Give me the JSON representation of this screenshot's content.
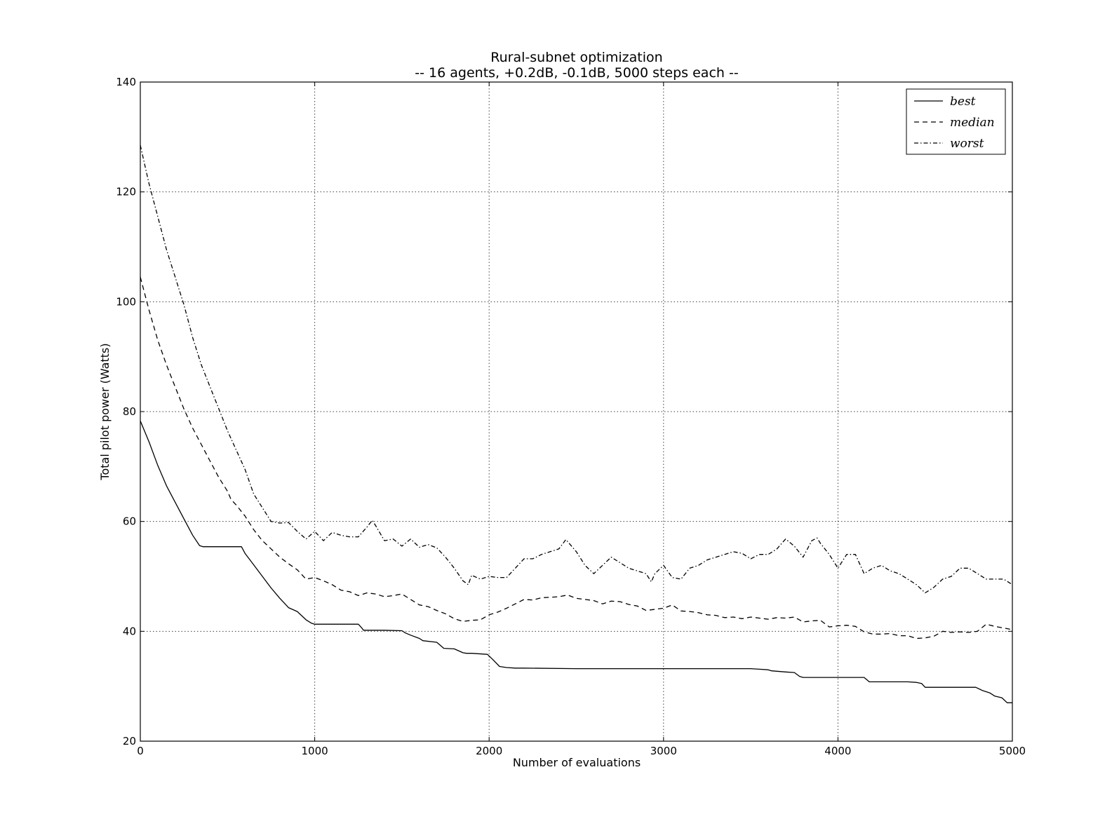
{
  "chart_data": {
    "type": "line",
    "title": "Rural-subnet optimization",
    "subtitle": "-- 16 agents, +0.2dB, -0.1dB, 5000 steps each --",
    "xlabel": "Number of evaluations",
    "ylabel": "Total pilot power (Watts)",
    "xlim": [
      0,
      5000
    ],
    "ylim": [
      20,
      140
    ],
    "xticks": [
      0,
      1000,
      2000,
      3000,
      4000,
      5000
    ],
    "yticks": [
      20,
      40,
      60,
      80,
      100,
      120,
      140
    ],
    "grid": true,
    "legend_position": "top-right",
    "series": [
      {
        "name": "best",
        "style": "solid",
        "x": [
          0,
          50,
          100,
          150,
          200,
          250,
          300,
          340,
          360,
          400,
          500,
          580,
          600,
          650,
          700,
          750,
          800,
          850,
          900,
          950,
          980,
          1000,
          1100,
          1200,
          1250,
          1270,
          1280,
          1300,
          1400,
          1500,
          1520,
          1550,
          1600,
          1620,
          1700,
          1740,
          1800,
          1850,
          1870,
          1900,
          1990,
          2020,
          2060,
          2100,
          2150,
          2200,
          2500,
          3000,
          3500,
          3550,
          3600,
          3620,
          3700,
          3750,
          3780,
          3800,
          3900,
          4000,
          4100,
          4150,
          4180,
          4200,
          4300,
          4400,
          4450,
          4480,
          4500,
          4600,
          4700,
          4790,
          4830,
          4870,
          4900,
          4940,
          4970,
          5000
        ],
        "y": [
          78.3,
          74.5,
          70.2,
          66.5,
          63.5,
          60.5,
          57.5,
          55.6,
          55.4,
          55.4,
          55.4,
          55.4,
          54.2,
          52.1,
          50.0,
          47.9,
          46.0,
          44.3,
          43.6,
          42.1,
          41.5,
          41.3,
          41.3,
          41.3,
          41.3,
          40.6,
          40.2,
          40.2,
          40.2,
          40.1,
          39.7,
          39.3,
          38.7,
          38.3,
          38.0,
          36.9,
          36.8,
          36.1,
          36.0,
          36.0,
          35.8,
          34.9,
          33.6,
          33.4,
          33.3,
          33.3,
          33.2,
          33.2,
          33.2,
          33.1,
          33.0,
          32.8,
          32.6,
          32.5,
          31.8,
          31.6,
          31.6,
          31.6,
          31.6,
          31.6,
          30.8,
          30.8,
          30.8,
          30.8,
          30.7,
          30.5,
          29.8,
          29.8,
          29.8,
          29.8,
          29.2,
          28.8,
          28.2,
          27.9,
          27.0,
          27.0
        ]
      },
      {
        "name": "median",
        "style": "dashed",
        "x": [
          0,
          50,
          100,
          150,
          200,
          250,
          300,
          350,
          400,
          450,
          500,
          520,
          550,
          600,
          650,
          700,
          750,
          800,
          850,
          900,
          950,
          1000,
          1050,
          1100,
          1150,
          1200,
          1250,
          1300,
          1350,
          1400,
          1450,
          1500,
          1550,
          1600,
          1650,
          1700,
          1750,
          1800,
          1850,
          1900,
          1950,
          2000,
          2050,
          2100,
          2150,
          2200,
          2250,
          2300,
          2350,
          2400,
          2450,
          2500,
          2550,
          2600,
          2650,
          2700,
          2750,
          2800,
          2850,
          2900,
          2950,
          3000,
          3050,
          3100,
          3150,
          3200,
          3250,
          3300,
          3350,
          3400,
          3450,
          3500,
          3550,
          3600,
          3650,
          3700,
          3750,
          3800,
          3850,
          3900,
          3950,
          4000,
          4050,
          4100,
          4150,
          4200,
          4250,
          4300,
          4350,
          4400,
          4450,
          4500,
          4550,
          4600,
          4650,
          4700,
          4750,
          4800,
          4850,
          4900,
          4950,
          5000
        ],
        "y": [
          104.5,
          98.5,
          93.0,
          88.5,
          84.5,
          80.5,
          77.0,
          74.0,
          71.0,
          68.0,
          65.5,
          64.0,
          63.0,
          61.0,
          58.5,
          56.5,
          55.0,
          53.5,
          52.3,
          51.2,
          49.5,
          49.8,
          49.2,
          48.5,
          47.5,
          47.2,
          46.5,
          47.0,
          46.8,
          46.3,
          46.5,
          46.8,
          45.8,
          44.8,
          44.5,
          43.8,
          43.2,
          42.3,
          41.8,
          42.0,
          42.1,
          43.0,
          43.5,
          44.2,
          45.0,
          45.8,
          45.7,
          46.1,
          46.2,
          46.3,
          46.6,
          46.0,
          45.8,
          45.6,
          45.0,
          45.5,
          45.4,
          44.9,
          44.6,
          43.8,
          44.0,
          44.2,
          44.8,
          43.7,
          43.6,
          43.4,
          43.0,
          42.9,
          42.5,
          42.6,
          42.3,
          42.6,
          42.4,
          42.2,
          42.5,
          42.4,
          42.6,
          41.7,
          41.9,
          42.0,
          40.8,
          41.0,
          41.1,
          40.9,
          39.9,
          39.5,
          39.5,
          39.6,
          39.2,
          39.2,
          38.7,
          38.8,
          39.1,
          40.0,
          39.8,
          39.9,
          39.8,
          40.0,
          41.3,
          40.9,
          40.6,
          40.3
        ]
      },
      {
        "name": "worst",
        "style": "dashdot",
        "x": [
          0,
          50,
          100,
          150,
          200,
          250,
          300,
          350,
          400,
          450,
          500,
          550,
          600,
          650,
          700,
          750,
          800,
          850,
          900,
          950,
          1000,
          1050,
          1100,
          1150,
          1200,
          1250,
          1300,
          1330,
          1350,
          1400,
          1450,
          1500,
          1550,
          1600,
          1650,
          1700,
          1750,
          1800,
          1850,
          1880,
          1900,
          1950,
          2000,
          2050,
          2100,
          2150,
          2200,
          2250,
          2300,
          2350,
          2400,
          2440,
          2500,
          2550,
          2600,
          2650,
          2700,
          2750,
          2800,
          2850,
          2900,
          2930,
          2950,
          3000,
          3050,
          3100,
          3150,
          3200,
          3250,
          3300,
          3350,
          3400,
          3450,
          3500,
          3550,
          3600,
          3650,
          3700,
          3750,
          3800,
          3850,
          3880,
          3900,
          3950,
          4000,
          4050,
          4100,
          4150,
          4200,
          4250,
          4300,
          4350,
          4400,
          4450,
          4500,
          4550,
          4600,
          4650,
          4700,
          4750,
          4800,
          4850,
          4900,
          4950,
          5000
        ],
        "y": [
          128.5,
          121.5,
          115.5,
          109.5,
          104.5,
          99.5,
          93.5,
          88.5,
          84.5,
          80.5,
          76.5,
          73.0,
          69.5,
          65.0,
          62.5,
          60.0,
          59.7,
          59.8,
          58.2,
          56.8,
          58.2,
          56.5,
          58.0,
          57.5,
          57.2,
          57.2,
          59.0,
          60.2,
          59.2,
          56.5,
          56.8,
          55.5,
          56.8,
          55.3,
          55.8,
          55.2,
          53.5,
          51.5,
          49.2,
          48.5,
          50.2,
          49.5,
          50.0,
          49.8,
          49.8,
          51.5,
          53.2,
          53.2,
          54.0,
          54.5,
          55.0,
          56.7,
          54.5,
          52.0,
          50.5,
          52.0,
          53.5,
          52.5,
          51.5,
          51.0,
          50.5,
          49.0,
          50.5,
          52.0,
          49.8,
          49.5,
          51.5,
          52.0,
          53.0,
          53.5,
          54.0,
          54.5,
          54.2,
          53.2,
          54.0,
          54.0,
          55.0,
          56.8,
          55.5,
          53.5,
          56.5,
          57.0,
          56.0,
          54.0,
          51.5,
          54.0,
          54.0,
          50.5,
          51.5,
          52.0,
          51.0,
          50.5,
          49.5,
          48.5,
          47.0,
          48.0,
          49.5,
          50.0,
          51.5,
          51.5,
          50.5,
          49.5,
          49.5,
          49.5,
          48.5
        ]
      }
    ]
  }
}
